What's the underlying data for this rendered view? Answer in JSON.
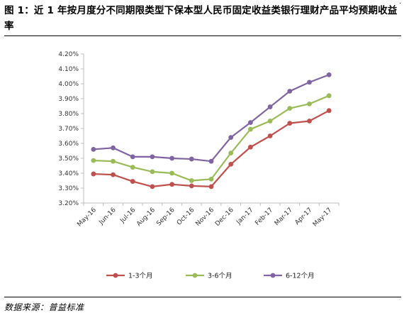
{
  "title": "图 1：近 1 年按月度分不同期限类型下保本型人民币固定收益类银行理财产品平均预期收益率",
  "corner_mark": "·",
  "source": "数据来源：普益标准",
  "colors": {
    "1-3个月": "#c0504d",
    "3-6个月": "#9bbb59",
    "6-12个月": "#8064a2",
    "axis": "#bfbfbf"
  },
  "chart_data": {
    "type": "line",
    "title": "",
    "xlabel": "",
    "ylabel": "",
    "categories": [
      "May-16",
      "Jun-16",
      "Jul-16",
      "Aug-16",
      "Sep-16",
      "Oct-16",
      "Nov-16",
      "Dec-16",
      "Jan-17",
      "Feb-17",
      "Mar-17",
      "Apr-17",
      "May-17"
    ],
    "ylim": [
      3.2,
      4.2
    ],
    "yticks": [
      "3.20%",
      "3.30%",
      "3.40%",
      "3.50%",
      "3.60%",
      "3.70%",
      "3.80%",
      "3.90%",
      "4.00%",
      "4.10%",
      "4.20%"
    ],
    "grid": false,
    "legend_position": "bottom",
    "series": [
      {
        "name": "1-3个月",
        "values": [
          3.395,
          3.39,
          3.345,
          3.31,
          3.325,
          3.315,
          3.31,
          3.46,
          3.575,
          3.65,
          3.735,
          3.75,
          3.82
        ]
      },
      {
        "name": "3-6个月",
        "values": [
          3.485,
          3.48,
          3.44,
          3.41,
          3.4,
          3.35,
          3.36,
          3.535,
          3.695,
          3.75,
          3.835,
          3.865,
          3.92
        ]
      },
      {
        "name": "6-12个月",
        "values": [
          3.56,
          3.57,
          3.51,
          3.51,
          3.5,
          3.495,
          3.48,
          3.64,
          3.74,
          3.845,
          3.95,
          4.01,
          4.06
        ]
      }
    ]
  }
}
